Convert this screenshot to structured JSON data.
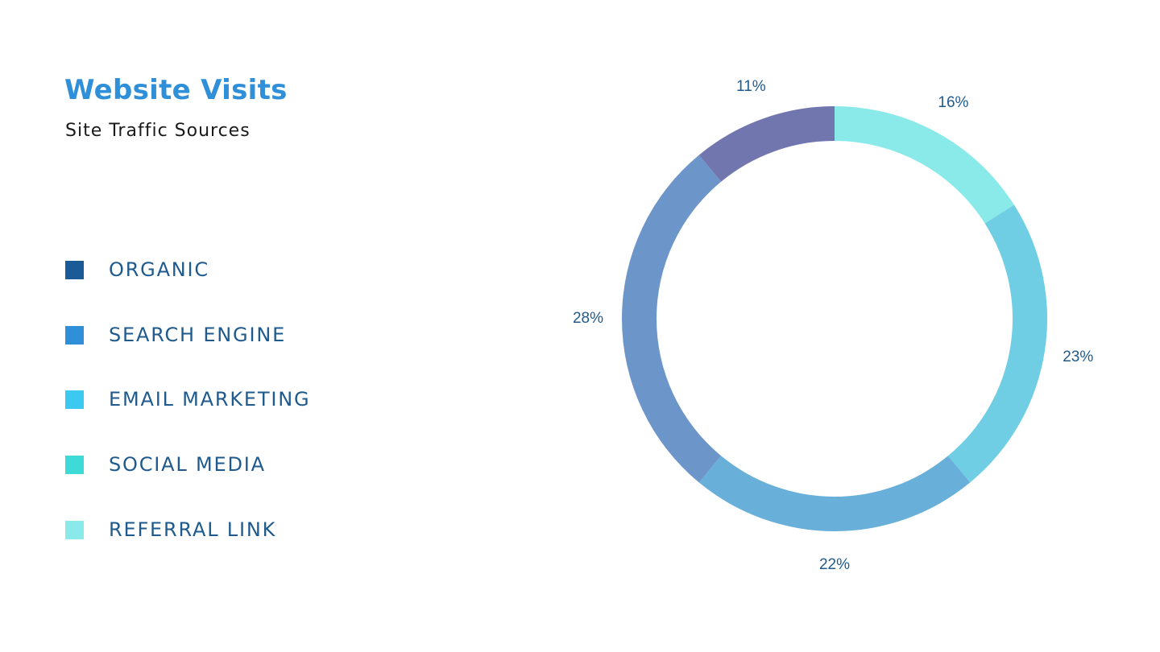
{
  "header": {
    "title": "Website Visits",
    "subtitle": "Site Traffic Sources"
  },
  "legend": [
    {
      "label": "ORGANIC",
      "color": "#1a5a96"
    },
    {
      "label": "SEARCH ENGINE",
      "color": "#2f8fd8"
    },
    {
      "label": "EMAIL MARKETING",
      "color": "#3bc9f2"
    },
    {
      "label": "SOCIAL MEDIA",
      "color": "#3ddad7"
    },
    {
      "label": "REFERRAL LINK",
      "color": "#8aeaea"
    }
  ],
  "chart_data": {
    "type": "pie",
    "variant": "donut",
    "title": "Website Visits",
    "subtitle": "Site Traffic Sources",
    "slices": [
      {
        "value": 16,
        "label": "16%",
        "color": "#8aeaea"
      },
      {
        "value": 23,
        "label": "23%",
        "color": "#6fcde4"
      },
      {
        "value": 22,
        "label": "22%",
        "color": "#68b0da"
      },
      {
        "value": 28,
        "label": "28%",
        "color": "#6c95c9"
      },
      {
        "value": 11,
        "label": "11%",
        "color": "#7276af"
      }
    ],
    "start": "top",
    "direction": "clockwise",
    "legend_position": "left"
  }
}
